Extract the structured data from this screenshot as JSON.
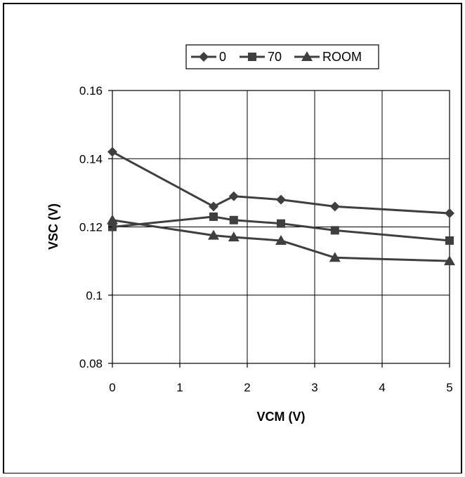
{
  "chart_data": {
    "type": "line",
    "title": "",
    "xlabel": "VCM (V)",
    "ylabel": "VSC (V)",
    "xlim": [
      0,
      5
    ],
    "ylim": [
      0.08,
      0.16
    ],
    "x_ticks": [
      "0",
      "1",
      "2",
      "3",
      "4",
      "5"
    ],
    "y_ticks": [
      "0.08",
      "0.1",
      "0.12",
      "0.14",
      "0.16"
    ],
    "grid": true,
    "legend_position": "top-right",
    "series": [
      {
        "name": "0",
        "marker": "diamond",
        "color": "#3f3f3f",
        "x": [
          0,
          1.5,
          1.8,
          2.5,
          3.3,
          5
        ],
        "y": [
          0.142,
          0.126,
          0.129,
          0.128,
          0.126,
          0.124
        ]
      },
      {
        "name": "70",
        "marker": "square",
        "color": "#3f3f3f",
        "x": [
          0,
          1.5,
          1.8,
          2.5,
          3.3,
          5
        ],
        "y": [
          0.12,
          0.123,
          0.122,
          0.121,
          0.119,
          0.116
        ]
      },
      {
        "name": "ROOM",
        "marker": "triangle",
        "color": "#3f3f3f",
        "x": [
          0,
          1.5,
          1.8,
          2.5,
          3.3,
          5
        ],
        "y": [
          0.122,
          0.1175,
          0.117,
          0.116,
          0.111,
          0.11
        ]
      }
    ]
  }
}
